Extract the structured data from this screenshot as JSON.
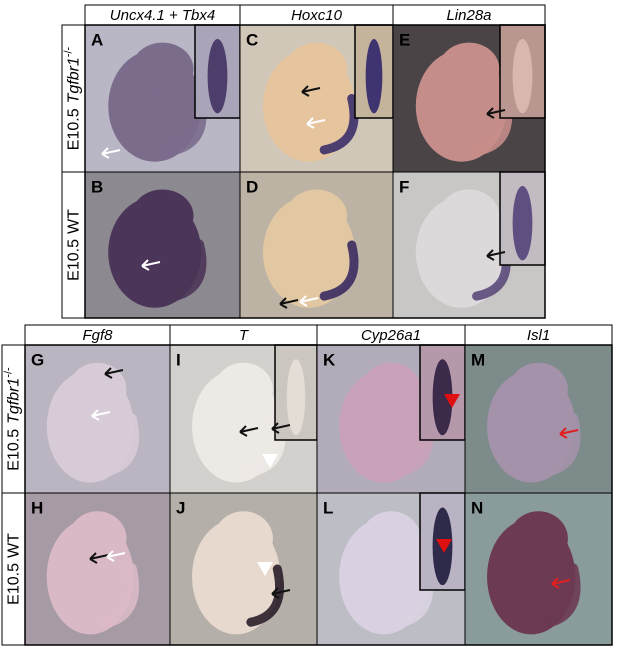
{
  "top": {
    "headers": [
      "Uncx4.1 + Tbx4",
      "Hoxc10",
      "Lin28a"
    ],
    "rows": [
      {
        "stage": "E10.5",
        "genotype": "Tgfbr1",
        "superscript": "-/-"
      },
      {
        "stage": "E10.5",
        "genotype": "WT"
      }
    ],
    "panels": [
      "A",
      "B",
      "C",
      "D",
      "E",
      "F"
    ]
  },
  "bottom": {
    "headers": [
      "Fgf8",
      "T",
      "Cyp26a1",
      "Isl1"
    ],
    "rows": [
      {
        "stage": "E10.5",
        "genotype": "Tgfbr1",
        "superscript": "-/-"
      },
      {
        "stage": "E10.5",
        "genotype": "WT"
      }
    ],
    "panels": [
      "G",
      "H",
      "I",
      "J",
      "K",
      "L",
      "M",
      "N"
    ]
  }
}
